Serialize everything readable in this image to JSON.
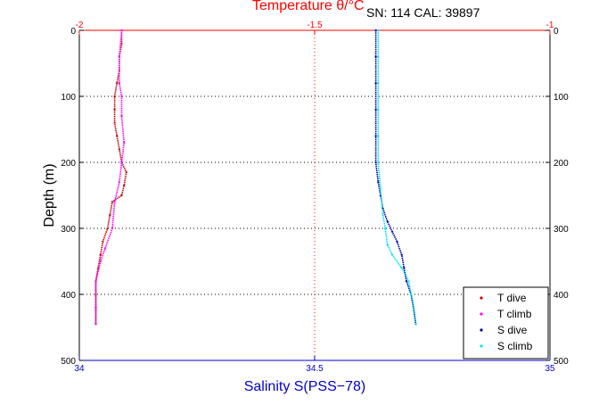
{
  "header": {
    "temperature_title": "Temperature θ/°C",
    "sn_label": "SN: 114  CAL: 39897"
  },
  "colors": {
    "temperature_axis": "#ff0000",
    "salinity_axis": "#0000cc",
    "t_dive": "#cc0000",
    "t_climb": "#ff00ff",
    "s_dive": "#0000aa",
    "s_climb": "#00e5e5",
    "grid": "#000000"
  },
  "chart_data": {
    "type": "line",
    "ylabel": "Depth (m)",
    "xlabel_bottom": "Salinity S(PSS−78)",
    "ylim": [
      0,
      500
    ],
    "y_reversed": true,
    "y_ticks": [
      "0",
      "100",
      "200",
      "300",
      "400",
      "500"
    ],
    "x_top": {
      "range": [
        -2,
        -1
      ],
      "ticks": [
        "-2",
        "-1.5",
        "-1"
      ]
    },
    "x_bottom": {
      "range": [
        34,
        35
      ],
      "ticks": [
        "34",
        "34.5",
        "35"
      ]
    },
    "grid": true,
    "legend_position": "bottom-right",
    "series": [
      {
        "name": "T dive",
        "axis": "temperature",
        "points": [
          [
            -1.91,
            0
          ],
          [
            -1.91,
            20
          ],
          [
            -1.915,
            40
          ],
          [
            -1.915,
            60
          ],
          [
            -1.92,
            80
          ],
          [
            -1.925,
            100
          ],
          [
            -1.925,
            120
          ],
          [
            -1.925,
            140
          ],
          [
            -1.92,
            160
          ],
          [
            -1.915,
            180
          ],
          [
            -1.91,
            200
          ],
          [
            -1.9,
            215
          ],
          [
            -1.905,
            235
          ],
          [
            -1.91,
            250
          ],
          [
            -1.93,
            260
          ],
          [
            -1.935,
            280
          ],
          [
            -1.94,
            300
          ],
          [
            -1.95,
            320
          ],
          [
            -1.955,
            340
          ],
          [
            -1.96,
            360
          ],
          [
            -1.965,
            380
          ],
          [
            -1.965,
            400
          ],
          [
            -1.965,
            420
          ],
          [
            -1.965,
            445
          ]
        ]
      },
      {
        "name": "T climb",
        "axis": "temperature",
        "points": [
          [
            -1.91,
            0
          ],
          [
            -1.915,
            40
          ],
          [
            -1.915,
            80
          ],
          [
            -1.91,
            100
          ],
          [
            -1.91,
            130
          ],
          [
            -1.905,
            170
          ],
          [
            -1.91,
            200
          ],
          [
            -1.915,
            230
          ],
          [
            -1.925,
            260
          ],
          [
            -1.93,
            300
          ],
          [
            -1.945,
            330
          ],
          [
            -1.955,
            350
          ],
          [
            -1.965,
            380
          ],
          [
            -1.965,
            420
          ],
          [
            -1.965,
            445
          ]
        ]
      },
      {
        "name": "S dive",
        "axis": "salinity",
        "points": [
          [
            34.63,
            0
          ],
          [
            34.63,
            40
          ],
          [
            34.63,
            80
          ],
          [
            34.63,
            120
          ],
          [
            34.63,
            160
          ],
          [
            34.63,
            200
          ],
          [
            34.635,
            230
          ],
          [
            34.64,
            250
          ],
          [
            34.645,
            270
          ],
          [
            34.655,
            290
          ],
          [
            34.665,
            305
          ],
          [
            34.675,
            320
          ],
          [
            34.685,
            340
          ],
          [
            34.69,
            360
          ],
          [
            34.695,
            380
          ],
          [
            34.705,
            400
          ],
          [
            34.71,
            420
          ],
          [
            34.715,
            445
          ]
        ]
      },
      {
        "name": "S climb",
        "axis": "salinity",
        "points": [
          [
            34.635,
            0
          ],
          [
            34.635,
            40
          ],
          [
            34.635,
            80
          ],
          [
            34.635,
            120
          ],
          [
            34.635,
            160
          ],
          [
            34.635,
            200
          ],
          [
            34.64,
            240
          ],
          [
            34.645,
            280
          ],
          [
            34.65,
            300
          ],
          [
            34.655,
            325
          ],
          [
            34.665,
            340
          ],
          [
            34.685,
            360
          ],
          [
            34.7,
            380
          ],
          [
            34.705,
            400
          ],
          [
            34.71,
            420
          ],
          [
            34.715,
            445
          ]
        ]
      }
    ]
  }
}
